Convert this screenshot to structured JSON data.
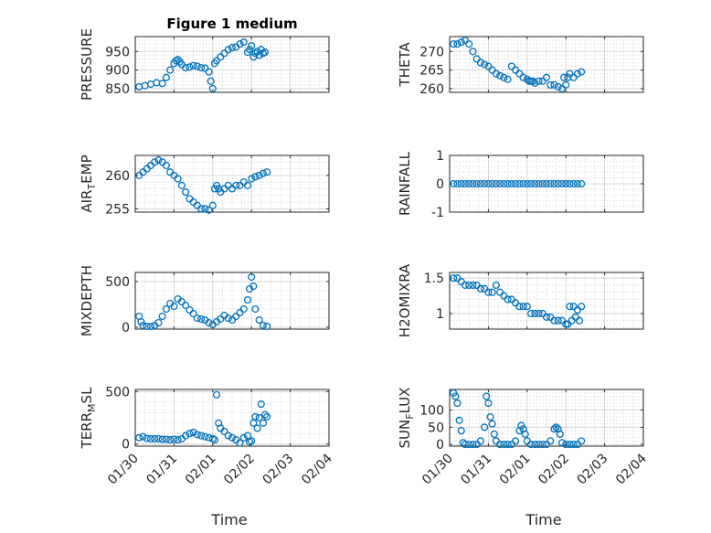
{
  "figure": {
    "marker_color": "#0072BD",
    "x_label": "Time"
  },
  "chart_data": [
    {
      "type": "scatter",
      "title": "Figure 1 medium",
      "ylabel": "PRESSURE",
      "ylim": [
        840,
        990
      ],
      "yticks": [
        850,
        900,
        950
      ],
      "xlim_days": [
        0,
        5
      ],
      "xticks": [
        "01/30",
        "01/31",
        "02/01",
        "02/02",
        "02/03",
        "02/04"
      ],
      "show_xticks": false,
      "minor_grid": true,
      "x": [
        0.1,
        0.25,
        0.4,
        0.55,
        0.7,
        0.8,
        0.9,
        1.0,
        1.05,
        1.1,
        1.15,
        1.2,
        1.3,
        1.4,
        1.5,
        1.6,
        1.7,
        1.8,
        1.9,
        1.95,
        2.0,
        2.05,
        2.1,
        2.2,
        2.3,
        2.4,
        2.5,
        2.6,
        2.7,
        2.8,
        2.9,
        2.95,
        3.0,
        3.05,
        3.1,
        3.15,
        3.2,
        3.25,
        3.3,
        3.35
      ],
      "y": [
        855,
        858,
        862,
        866,
        864,
        880,
        900,
        918,
        925,
        928,
        922,
        915,
        906,
        908,
        912,
        910,
        906,
        905,
        895,
        870,
        850,
        918,
        925,
        935,
        945,
        955,
        960,
        962,
        970,
        975,
        948,
        955,
        965,
        935,
        945,
        950,
        940,
        955,
        945,
        948
      ]
    },
    {
      "type": "scatter",
      "title": "",
      "ylabel": "THETA",
      "ylim": [
        259,
        274
      ],
      "yticks": [
        260,
        265,
        270
      ],
      "xlim_days": [
        0,
        5
      ],
      "xticks": [
        "01/30",
        "01/31",
        "02/01",
        "02/02",
        "02/03",
        "02/04"
      ],
      "show_xticks": false,
      "minor_grid": true,
      "x": [
        0.1,
        0.2,
        0.3,
        0.4,
        0.5,
        0.6,
        0.7,
        0.8,
        0.9,
        1.0,
        1.1,
        1.2,
        1.3,
        1.4,
        1.5,
        1.6,
        1.7,
        1.8,
        1.9,
        2.0,
        2.05,
        2.1,
        2.15,
        2.2,
        2.3,
        2.4,
        2.5,
        2.6,
        2.7,
        2.8,
        2.9,
        2.95,
        3.0,
        3.05,
        3.1,
        3.2,
        3.3,
        3.4
      ],
      "y": [
        272,
        272,
        272.5,
        273,
        272,
        270,
        268,
        267,
        266.5,
        266,
        265,
        264,
        263.5,
        263,
        262.5,
        266,
        265,
        264,
        263,
        262.5,
        262,
        262,
        262,
        261.5,
        262,
        262,
        263,
        261,
        261,
        260.5,
        260,
        263,
        261,
        263,
        264,
        263,
        264,
        264.5
      ]
    },
    {
      "type": "scatter",
      "title": "",
      "ylabel": "AIR_TEMP",
      "ylabel_main": "AIR",
      "ylabel_sub": "T",
      "ylabel_tail": "EMP",
      "ylim": [
        254.5,
        263
      ],
      "yticks": [
        255,
        260
      ],
      "xlim_days": [
        0,
        5
      ],
      "xticks": [
        "01/30",
        "01/31",
        "02/01",
        "02/02",
        "02/03",
        "02/04"
      ],
      "show_xticks": false,
      "minor_grid": true,
      "x": [
        0.1,
        0.2,
        0.3,
        0.4,
        0.5,
        0.6,
        0.7,
        0.8,
        0.9,
        1.0,
        1.1,
        1.2,
        1.3,
        1.4,
        1.5,
        1.6,
        1.7,
        1.8,
        1.9,
        2.0,
        2.05,
        2.1,
        2.15,
        2.2,
        2.3,
        2.4,
        2.5,
        2.6,
        2.7,
        2.8,
        2.9,
        3.0,
        3.1,
        3.2,
        3.3,
        3.4
      ],
      "y": [
        260,
        260.5,
        261,
        261.5,
        262,
        262.3,
        262,
        261.5,
        260.5,
        260,
        259.5,
        258.5,
        257.5,
        256.5,
        256,
        255.5,
        255,
        255,
        254.8,
        255.5,
        258,
        258.5,
        258,
        257.5,
        258,
        258.5,
        258,
        258.5,
        258.5,
        259,
        258.5,
        259.5,
        259.8,
        260,
        260.3,
        260.5
      ]
    },
    {
      "type": "scatter",
      "title": "",
      "ylabel": "RAINFALL",
      "ylim": [
        -1,
        1
      ],
      "yticks": [
        -1,
        0,
        1
      ],
      "xlim_days": [
        0,
        5
      ],
      "xticks": [
        "01/30",
        "01/31",
        "02/01",
        "02/02",
        "02/03",
        "02/04"
      ],
      "show_xticks": false,
      "minor_grid": true,
      "x": [
        0.1,
        0.2,
        0.3,
        0.4,
        0.5,
        0.6,
        0.7,
        0.8,
        0.9,
        1.0,
        1.1,
        1.2,
        1.3,
        1.4,
        1.5,
        1.6,
        1.7,
        1.8,
        1.9,
        2.0,
        2.1,
        2.2,
        2.3,
        2.4,
        2.5,
        2.6,
        2.7,
        2.8,
        2.9,
        3.0,
        3.1,
        3.2,
        3.3,
        3.4
      ],
      "y": [
        0,
        0,
        0,
        0,
        0,
        0,
        0,
        0,
        0,
        0,
        0,
        0,
        0,
        0,
        0,
        0,
        0,
        0,
        0,
        0,
        0,
        0,
        0,
        0,
        0,
        0,
        0,
        0,
        0,
        0,
        0,
        0,
        0,
        0
      ]
    },
    {
      "type": "scatter",
      "title": "",
      "ylabel": "MIXDEPTH",
      "ylim": [
        -20,
        600
      ],
      "yticks": [
        0,
        500
      ],
      "xlim_days": [
        0,
        5
      ],
      "xticks": [
        "01/30",
        "01/31",
        "02/01",
        "02/02",
        "02/03",
        "02/04"
      ],
      "show_xticks": false,
      "minor_grid": true,
      "x": [
        0.1,
        0.15,
        0.2,
        0.3,
        0.4,
        0.5,
        0.6,
        0.7,
        0.8,
        0.9,
        1.0,
        1.1,
        1.2,
        1.3,
        1.4,
        1.5,
        1.6,
        1.7,
        1.8,
        1.9,
        2.0,
        2.1,
        2.2,
        2.3,
        2.4,
        2.5,
        2.6,
        2.7,
        2.8,
        2.9,
        2.95,
        3.0,
        3.05,
        3.1,
        3.2,
        3.3,
        3.4
      ],
      "y": [
        120,
        60,
        20,
        10,
        10,
        20,
        50,
        120,
        200,
        260,
        230,
        310,
        280,
        240,
        190,
        150,
        100,
        90,
        80,
        50,
        30,
        60,
        90,
        130,
        100,
        80,
        120,
        160,
        200,
        300,
        420,
        550,
        450,
        200,
        80,
        20,
        10
      ]
    },
    {
      "type": "scatter",
      "title": "",
      "ylabel": "H2OMIXRA",
      "ylim": [
        0.78,
        1.58
      ],
      "yticks": [
        1,
        1.5
      ],
      "xlim_days": [
        0,
        5
      ],
      "xticks": [
        "01/30",
        "01/31",
        "02/01",
        "02/02",
        "02/03",
        "02/04"
      ],
      "show_xticks": false,
      "minor_grid": true,
      "x": [
        0.1,
        0.2,
        0.3,
        0.4,
        0.5,
        0.6,
        0.7,
        0.8,
        0.9,
        1.0,
        1.1,
        1.2,
        1.3,
        1.4,
        1.5,
        1.6,
        1.7,
        1.8,
        1.9,
        2.0,
        2.1,
        2.2,
        2.3,
        2.4,
        2.5,
        2.6,
        2.7,
        2.8,
        2.9,
        3.0,
        3.05,
        3.1,
        3.15,
        3.2,
        3.25,
        3.3,
        3.35,
        3.4
      ],
      "y": [
        1.5,
        1.5,
        1.45,
        1.4,
        1.4,
        1.4,
        1.4,
        1.35,
        1.35,
        1.3,
        1.3,
        1.4,
        1.3,
        1.25,
        1.2,
        1.2,
        1.15,
        1.1,
        1.1,
        1.1,
        1.0,
        1.0,
        1.0,
        1.0,
        0.95,
        0.95,
        0.9,
        0.9,
        0.9,
        0.85,
        0.85,
        1.1,
        0.9,
        1.1,
        0.95,
        1.05,
        0.9,
        1.1
      ]
    },
    {
      "type": "scatter",
      "title": "",
      "ylabel": "TERR_MSL",
      "ylabel_main": "TERR",
      "ylabel_sub": "M",
      "ylabel_tail": "SL",
      "ylim": [
        -20,
        520
      ],
      "yticks": [
        0,
        500
      ],
      "xlim_days": [
        0,
        5
      ],
      "xticks": [
        "01/30",
        "01/31",
        "02/01",
        "02/02",
        "02/03",
        "02/04"
      ],
      "show_xticks": true,
      "minor_grid": true,
      "x": [
        0.1,
        0.2,
        0.3,
        0.4,
        0.5,
        0.6,
        0.7,
        0.8,
        0.9,
        1.0,
        1.1,
        1.2,
        1.3,
        1.4,
        1.5,
        1.6,
        1.7,
        1.8,
        1.9,
        2.0,
        2.05,
        2.1,
        2.15,
        2.2,
        2.3,
        2.4,
        2.5,
        2.6,
        2.7,
        2.8,
        2.9,
        2.95,
        3.0,
        3.05,
        3.1,
        3.15,
        3.2,
        3.25,
        3.3,
        3.35,
        3.4
      ],
      "y": [
        60,
        70,
        55,
        50,
        50,
        50,
        45,
        45,
        40,
        45,
        40,
        50,
        80,
        100,
        110,
        90,
        80,
        70,
        60,
        50,
        40,
        470,
        200,
        150,
        120,
        80,
        60,
        40,
        10,
        60,
        80,
        20,
        30,
        200,
        260,
        150,
        250,
        380,
        200,
        280,
        260
      ]
    },
    {
      "type": "scatter",
      "title": "",
      "ylabel": "SUN_FLUX",
      "ylabel_main": "SUN",
      "ylabel_sub": "F",
      "ylabel_tail": "LUX",
      "ylim": [
        -5,
        160
      ],
      "yticks": [
        0,
        50,
        100
      ],
      "xlim_days": [
        0,
        5
      ],
      "xticks": [
        "01/30",
        "01/31",
        "02/01",
        "02/02",
        "02/03",
        "02/04"
      ],
      "show_xticks": true,
      "minor_grid": true,
      "x": [
        0.1,
        0.15,
        0.2,
        0.25,
        0.3,
        0.35,
        0.4,
        0.5,
        0.6,
        0.7,
        0.8,
        0.9,
        0.95,
        1.0,
        1.05,
        1.1,
        1.15,
        1.2,
        1.3,
        1.4,
        1.5,
        1.6,
        1.7,
        1.8,
        1.85,
        1.9,
        1.95,
        2.0,
        2.1,
        2.2,
        2.3,
        2.4,
        2.5,
        2.6,
        2.7,
        2.75,
        2.8,
        2.85,
        2.9,
        3.0,
        3.1,
        3.2,
        3.3,
        3.4
      ],
      "y": [
        150,
        140,
        120,
        70,
        40,
        5,
        0,
        0,
        0,
        0,
        10,
        50,
        140,
        120,
        80,
        60,
        30,
        10,
        0,
        0,
        0,
        0,
        10,
        40,
        55,
        45,
        30,
        10,
        0,
        0,
        0,
        0,
        0,
        10,
        45,
        50,
        45,
        30,
        5,
        0,
        0,
        0,
        0,
        10
      ]
    }
  ]
}
